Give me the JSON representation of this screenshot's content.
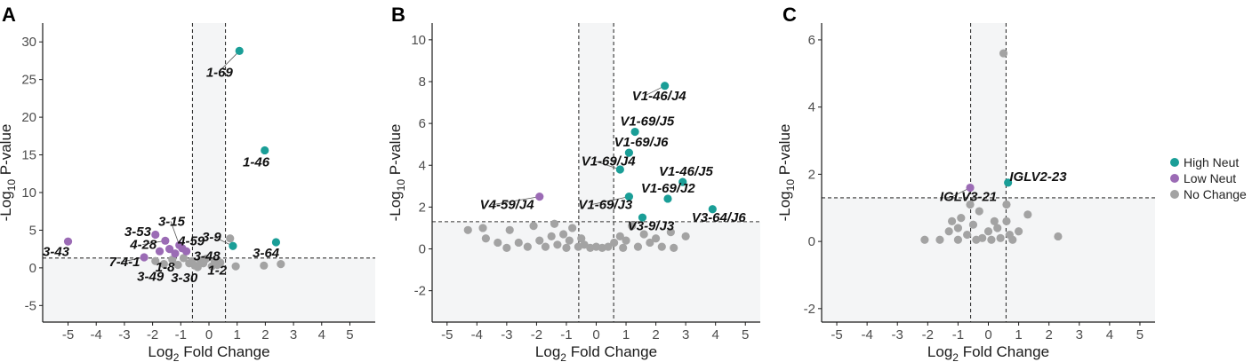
{
  "figure": {
    "legend": {
      "position": "right",
      "entries": [
        {
          "label": "High Neut",
          "color": "#1a9e97"
        },
        {
          "label": "Low Neut",
          "color": "#9b6bb5"
        },
        {
          "label": "No Change",
          "color": "#a3a3a3"
        }
      ]
    },
    "colors": {
      "shade": "#f4f5f6",
      "axis": "#1a1a1a",
      "guide": "#333333"
    }
  },
  "chart_data": [
    {
      "panel": "A",
      "type": "scatter",
      "xlabel_main": "Log",
      "xlabel_sub": "2",
      "xlabel_rest": " Fold Change",
      "ylabel_pre": "-Log",
      "ylabel_sub": "10",
      "ylabel_rest": " P-value",
      "xlim": [
        -5.9,
        5.9
      ],
      "ylim": [
        -7.2,
        32.5
      ],
      "xticks": [
        "-5",
        "-4",
        "-3",
        "-2",
        "-1",
        "0",
        "1",
        "2",
        "3",
        "4",
        "5"
      ],
      "xtick_values": [
        -5,
        -4,
        -3,
        -2,
        -1,
        0,
        1,
        2,
        3,
        4,
        5
      ],
      "yticks": [
        "-5",
        "0",
        "5",
        "10",
        "15",
        "20",
        "25",
        "30"
      ],
      "ytick_values": [
        -5,
        0,
        5,
        10,
        15,
        20,
        25,
        30
      ],
      "fc_cut": 0.585,
      "p_cut": 1.3,
      "points": [
        {
          "x": 1.08,
          "y": 28.8,
          "g": "high",
          "label": "1-69"
        },
        {
          "x": 1.98,
          "y": 15.6,
          "g": "high",
          "label": "1-46"
        },
        {
          "x": 2.38,
          "y": 3.4,
          "g": "high",
          "label": "3-64"
        },
        {
          "x": 0.85,
          "y": 2.9,
          "g": "high",
          "label": "3-9"
        },
        {
          "x": -5.0,
          "y": 3.5,
          "g": "low",
          "label": "3-43"
        },
        {
          "x": -1.9,
          "y": 4.4,
          "g": "low",
          "label": "3-53"
        },
        {
          "x": -1.55,
          "y": 3.6,
          "g": "low",
          "label": "4-28"
        },
        {
          "x": -1.05,
          "y": 3.0,
          "g": "low",
          "label": "3-15"
        },
        {
          "x": -0.95,
          "y": 2.6,
          "g": "low",
          "label": "4-59"
        },
        {
          "x": -2.3,
          "y": 1.4,
          "g": "low",
          "label": "7-4-1"
        },
        {
          "x": -1.75,
          "y": 2.2,
          "g": "low"
        },
        {
          "x": -1.4,
          "y": 2.5,
          "g": "low"
        },
        {
          "x": -1.2,
          "y": 1.9,
          "g": "low"
        },
        {
          "x": -0.8,
          "y": 2.2,
          "g": "low"
        },
        {
          "x": -1.9,
          "y": 0.9,
          "g": "nc",
          "label": "3-49"
        },
        {
          "x": -1.3,
          "y": 1.1,
          "g": "nc",
          "label": "1-8"
        },
        {
          "x": -0.7,
          "y": 0.6,
          "g": "nc",
          "label": "3-30"
        },
        {
          "x": -0.3,
          "y": 1.0,
          "g": "nc",
          "label": "3-48"
        },
        {
          "x": 0.3,
          "y": 0.4,
          "g": "nc",
          "label": "1-2"
        },
        {
          "x": 0.75,
          "y": 3.9,
          "g": "nc"
        },
        {
          "x": 0.95,
          "y": 0.2,
          "g": "nc"
        },
        {
          "x": 1.95,
          "y": 0.3,
          "g": "nc"
        },
        {
          "x": 2.55,
          "y": 0.5,
          "g": "nc"
        },
        {
          "x": -1.6,
          "y": 0.5,
          "g": "nc"
        },
        {
          "x": -1.1,
          "y": 0.4,
          "g": "nc"
        },
        {
          "x": -0.9,
          "y": 1.3,
          "g": "nc"
        },
        {
          "x": -0.5,
          "y": 0.3,
          "g": "nc"
        },
        {
          "x": -0.2,
          "y": 0.6,
          "g": "nc"
        },
        {
          "x": 0.1,
          "y": 0.2,
          "g": "nc"
        },
        {
          "x": 0.4,
          "y": 0.7,
          "g": "nc"
        },
        {
          "x": -0.4,
          "y": 0.1,
          "g": "nc"
        },
        {
          "x": -0.1,
          "y": 1.2,
          "g": "nc"
        },
        {
          "x": -0.6,
          "y": 0.9,
          "g": "nc"
        },
        {
          "x": 0.2,
          "y": 0.9,
          "g": "nc"
        }
      ],
      "annotations": [
        {
          "text": "1-69",
          "x": -0.1,
          "y": 25.4
        },
        {
          "text": "1-46",
          "x": 1.2,
          "y": 13.5
        },
        {
          "text": "3-64",
          "x": 1.55,
          "y": 1.4
        },
        {
          "text": "3-9",
          "x": -0.25,
          "y": 3.5
        },
        {
          "text": "3-43",
          "x": -5.9,
          "y": 1.6
        },
        {
          "text": "3-53",
          "x": -3.0,
          "y": 4.2
        },
        {
          "text": "4-28",
          "x": -2.8,
          "y": 2.5
        },
        {
          "text": "3-15",
          "x": -1.8,
          "y": 5.6
        },
        {
          "text": "4-59",
          "x": -1.1,
          "y": 3.0
        },
        {
          "text": "7-4-1",
          "x": -3.55,
          "y": 0.2
        },
        {
          "text": "1-8",
          "x": -1.9,
          "y": -0.5
        },
        {
          "text": "3-49",
          "x": -2.55,
          "y": -1.7
        },
        {
          "text": "3-30",
          "x": -1.35,
          "y": -1.9
        },
        {
          "text": "3-48",
          "x": -0.55,
          "y": 1.0
        },
        {
          "text": "1-2",
          "x": -0.05,
          "y": -0.9
        }
      ]
    },
    {
      "panel": "B",
      "type": "scatter",
      "xlabel_main": "Log",
      "xlabel_sub": "2",
      "xlabel_rest": " Fold Change",
      "ylabel_pre": "-Log",
      "ylabel_sub": "10",
      "ylabel_rest": " P-value",
      "xlim": [
        -5.5,
        5.5
      ],
      "ylim": [
        -3.5,
        10.8
      ],
      "xticks": [
        "-5",
        "-4",
        "-3",
        "-2",
        "-1",
        "0",
        "1",
        "2",
        "3",
        "4",
        "5"
      ],
      "xtick_values": [
        -5,
        -4,
        -3,
        -2,
        -1,
        0,
        1,
        2,
        3,
        4,
        5
      ],
      "yticks": [
        "-2",
        "0",
        "2",
        "4",
        "6",
        "8",
        "10"
      ],
      "ytick_values": [
        -2,
        0,
        2,
        4,
        6,
        8,
        10
      ],
      "fc_cut": 0.585,
      "p_cut": 1.3,
      "points": [
        {
          "x": 2.3,
          "y": 7.8,
          "g": "high",
          "label": "V1-46/J4"
        },
        {
          "x": 1.3,
          "y": 5.6,
          "g": "high",
          "label": "V1-69/J5"
        },
        {
          "x": 1.1,
          "y": 4.6,
          "g": "high",
          "label": "V1-69/J6"
        },
        {
          "x": 0.8,
          "y": 3.8,
          "g": "high",
          "label": "V1-69/J4"
        },
        {
          "x": 2.9,
          "y": 3.2,
          "g": "high",
          "label": "V1-46/J5"
        },
        {
          "x": 2.4,
          "y": 2.4,
          "g": "high",
          "label": "V1-69/J2"
        },
        {
          "x": 1.1,
          "y": 2.5,
          "g": "high",
          "label": "V1-69/J3"
        },
        {
          "x": 3.9,
          "y": 1.9,
          "g": "high",
          "label": "V3-64/J6"
        },
        {
          "x": 1.55,
          "y": 1.5,
          "g": "high",
          "label": "V3-9/J3"
        },
        {
          "x": -1.9,
          "y": 2.5,
          "g": "low",
          "label": "V4-59/J4"
        },
        {
          "x": -4.3,
          "y": 0.9,
          "g": "nc"
        },
        {
          "x": -3.8,
          "y": 1.0,
          "g": "nc"
        },
        {
          "x": -3.7,
          "y": 0.5,
          "g": "nc"
        },
        {
          "x": -3.3,
          "y": 0.3,
          "g": "nc"
        },
        {
          "x": -2.9,
          "y": 0.9,
          "g": "nc"
        },
        {
          "x": -2.6,
          "y": 0.3,
          "g": "nc"
        },
        {
          "x": -2.3,
          "y": 0.1,
          "g": "nc"
        },
        {
          "x": -2.1,
          "y": 1.1,
          "g": "nc"
        },
        {
          "x": -1.9,
          "y": 0.4,
          "g": "nc"
        },
        {
          "x": -1.7,
          "y": 0.1,
          "g": "nc"
        },
        {
          "x": -1.5,
          "y": 0.6,
          "g": "nc"
        },
        {
          "x": -1.4,
          "y": 1.2,
          "g": "nc"
        },
        {
          "x": -1.3,
          "y": 0.2,
          "g": "nc"
        },
        {
          "x": -1.1,
          "y": 0.7,
          "g": "nc"
        },
        {
          "x": -0.9,
          "y": 0.4,
          "g": "nc"
        },
        {
          "x": -0.8,
          "y": 1.0,
          "g": "nc"
        },
        {
          "x": -0.6,
          "y": 0.1,
          "g": "nc"
        },
        {
          "x": -0.5,
          "y": 0.5,
          "g": "nc"
        },
        {
          "x": -0.4,
          "y": 0.2,
          "g": "nc"
        },
        {
          "x": -0.2,
          "y": 0.05,
          "g": "nc"
        },
        {
          "x": 0.0,
          "y": 0.1,
          "g": "nc"
        },
        {
          "x": 0.2,
          "y": 0.05,
          "g": "nc"
        },
        {
          "x": 0.4,
          "y": 0.1,
          "g": "nc"
        },
        {
          "x": 0.6,
          "y": 0.3,
          "g": "nc"
        },
        {
          "x": 0.8,
          "y": 0.6,
          "g": "nc"
        },
        {
          "x": 1.0,
          "y": 0.4,
          "g": "nc"
        },
        {
          "x": 1.2,
          "y": 1.1,
          "g": "nc"
        },
        {
          "x": 1.4,
          "y": 0.1,
          "g": "nc"
        },
        {
          "x": 1.6,
          "y": 0.7,
          "g": "nc"
        },
        {
          "x": 1.8,
          "y": 0.3,
          "g": "nc"
        },
        {
          "x": 2.0,
          "y": 0.5,
          "g": "nc"
        },
        {
          "x": 2.2,
          "y": 0.1,
          "g": "nc"
        },
        {
          "x": 2.5,
          "y": 0.8,
          "g": "nc"
        },
        {
          "x": 2.6,
          "y": 0.05,
          "g": "nc"
        },
        {
          "x": 3.0,
          "y": 0.6,
          "g": "nc"
        },
        {
          "x": -3.0,
          "y": 0.05,
          "g": "nc"
        },
        {
          "x": -1.0,
          "y": 0.05,
          "g": "nc"
        },
        {
          "x": 0.9,
          "y": 0.05,
          "g": "nc"
        }
      ],
      "annotations": [
        {
          "text": "V1-46/J4",
          "x": 1.2,
          "y": 7.1
        },
        {
          "text": "V1-69/J5",
          "x": 0.8,
          "y": 5.9
        },
        {
          "text": "V1-69/J6",
          "x": 0.6,
          "y": 4.9
        },
        {
          "text": "V1-69/J4",
          "x": -0.5,
          "y": 4.0
        },
        {
          "text": "V1-46/J5",
          "x": 2.1,
          "y": 3.5
        },
        {
          "text": "V1-69/J2",
          "x": 1.5,
          "y": 2.7
        },
        {
          "text": "V1-69/J3",
          "x": -0.6,
          "y": 1.9
        },
        {
          "text": "V3-64/J6",
          "x": 3.2,
          "y": 1.3
        },
        {
          "text": "V3-9/J3",
          "x": 1.05,
          "y": 0.9
        },
        {
          "text": "V4-59/J4",
          "x": -3.9,
          "y": 1.9
        }
      ]
    },
    {
      "panel": "C",
      "type": "scatter",
      "xlabel_main": "Log",
      "xlabel_sub": "2",
      "xlabel_rest": " Fold Change",
      "ylabel_pre": "-Log",
      "ylabel_sub": "10",
      "ylabel_rest": " P-value",
      "xlim": [
        -5.5,
        5.5
      ],
      "ylim": [
        -2.4,
        6.5
      ],
      "xticks": [
        "-5",
        "-4",
        "-3",
        "-2",
        "-1",
        "0",
        "1",
        "2",
        "3",
        "4",
        "5"
      ],
      "xtick_values": [
        -5,
        -4,
        -3,
        -2,
        -1,
        0,
        1,
        2,
        3,
        4,
        5
      ],
      "yticks": [
        "-2",
        "0",
        "2",
        "4",
        "6"
      ],
      "ytick_values": [
        -2,
        0,
        2,
        4,
        6
      ],
      "fc_cut": 0.585,
      "p_cut": 1.3,
      "points": [
        {
          "x": 0.65,
          "y": 1.75,
          "g": "high",
          "label": "IGLV2-23"
        },
        {
          "x": -0.6,
          "y": 1.6,
          "g": "low",
          "label": "IGLV3-21"
        },
        {
          "x": 0.5,
          "y": 5.6,
          "g": "nc"
        },
        {
          "x": -2.1,
          "y": 0.05,
          "g": "nc"
        },
        {
          "x": -1.6,
          "y": 0.05,
          "g": "nc"
        },
        {
          "x": -1.3,
          "y": 0.3,
          "g": "nc"
        },
        {
          "x": -1.2,
          "y": 0.6,
          "g": "nc"
        },
        {
          "x": -1.0,
          "y": 0.4,
          "g": "nc"
        },
        {
          "x": -0.9,
          "y": 0.7,
          "g": "nc"
        },
        {
          "x": -0.7,
          "y": 0.2,
          "g": "nc"
        },
        {
          "x": -0.6,
          "y": 1.1,
          "g": "nc"
        },
        {
          "x": -0.5,
          "y": 0.5,
          "g": "nc"
        },
        {
          "x": -0.3,
          "y": 0.9,
          "g": "nc"
        },
        {
          "x": -0.2,
          "y": 0.1,
          "g": "nc"
        },
        {
          "x": 0.0,
          "y": 0.3,
          "g": "nc"
        },
        {
          "x": 0.1,
          "y": 0.05,
          "g": "nc"
        },
        {
          "x": 0.3,
          "y": 0.4,
          "g": "nc"
        },
        {
          "x": 0.4,
          "y": 0.1,
          "g": "nc"
        },
        {
          "x": 0.6,
          "y": 1.1,
          "g": "nc"
        },
        {
          "x": 0.6,
          "y": 0.6,
          "g": "nc"
        },
        {
          "x": 0.8,
          "y": 0.05,
          "g": "nc"
        },
        {
          "x": 1.0,
          "y": 0.3,
          "g": "nc"
        },
        {
          "x": 1.3,
          "y": 0.8,
          "g": "nc"
        },
        {
          "x": 2.3,
          "y": 0.15,
          "g": "nc"
        },
        {
          "x": -0.4,
          "y": 0.05,
          "g": "nc"
        },
        {
          "x": 0.2,
          "y": 0.6,
          "g": "nc"
        },
        {
          "x": -1.0,
          "y": 0.05,
          "g": "nc"
        },
        {
          "x": 0.7,
          "y": 0.2,
          "g": "nc"
        }
      ],
      "annotations": [
        {
          "text": "IGLV2-23",
          "x": 0.7,
          "y": 1.8
        },
        {
          "text": "IGLV3-21",
          "x": -1.6,
          "y": 1.2
        }
      ]
    }
  ],
  "panel_letters": [
    "A",
    "B",
    "C"
  ]
}
